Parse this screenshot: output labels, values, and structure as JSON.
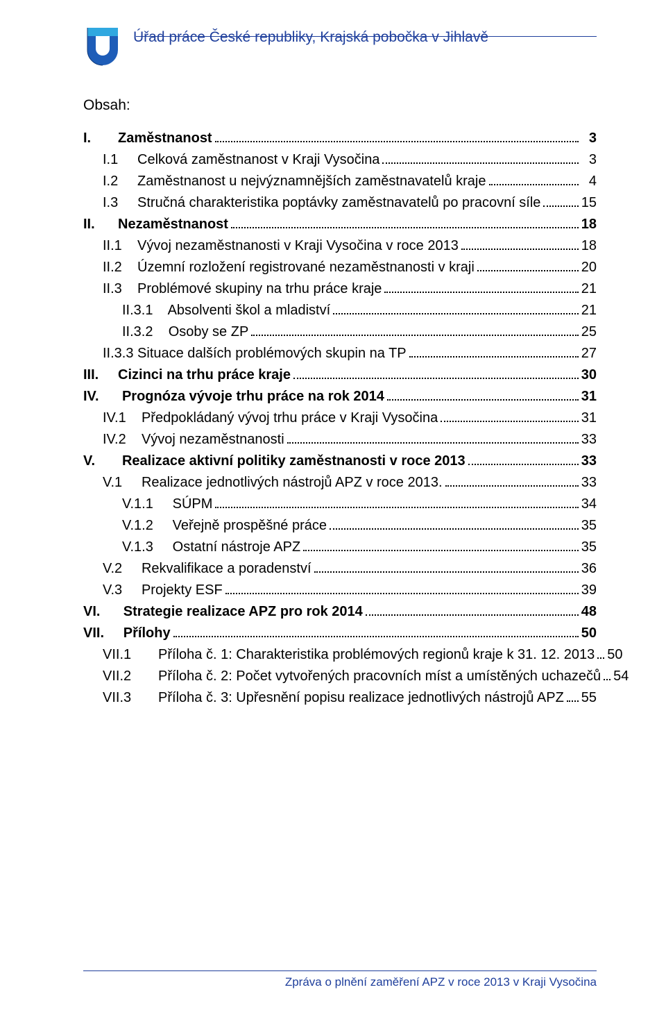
{
  "colors": {
    "brand": "#1f3f9c",
    "text": "#000000",
    "background": "#ffffff"
  },
  "typography": {
    "font_family": "Arial",
    "body_fontsize_pt": 15,
    "header_fontsize_pt": 16,
    "line_height": 1.55
  },
  "header": {
    "title": "Úřad práce České republiky, Krajská pobočka v Jihlavě"
  },
  "obsah_label": "Obsah:",
  "footer": {
    "text": "Zpráva o plnění zaměření APZ v roce 2013 v Kraji Vysočina"
  },
  "toc": [
    {
      "indent": 0,
      "bold": true,
      "num": "I.",
      "title": "Zaměstnanost",
      "page": "3",
      "pad_num": 9
    },
    {
      "indent": 1,
      "bold": false,
      "num": "I.1",
      "title": "Celková zaměstnanost v Kraji Vysočina",
      "page": "3",
      "pad_num": 8
    },
    {
      "indent": 1,
      "bold": false,
      "num": "I.2",
      "title": "Zaměstnanost u nejvýznamnějších zaměstnavatelů kraje",
      "page": "4",
      "pad_num": 8
    },
    {
      "indent": 1,
      "bold": false,
      "num": "I.3",
      "title": "Stručná charakteristika poptávky zaměstnavatelů po pracovní síle",
      "page": "15",
      "pad_num": 8
    },
    {
      "indent": 0,
      "bold": true,
      "num": "II.",
      "title": "Nezaměstnanost",
      "page": "18",
      "pad_num": 9
    },
    {
      "indent": 1,
      "bold": false,
      "num": "II.1",
      "title": "Vývoj nezaměstnanosti v Kraji Vysočina v roce 2013",
      "page": "18",
      "pad_num": 8
    },
    {
      "indent": 1,
      "bold": false,
      "num": "II.2",
      "title": "Územní rozložení registrované nezaměstnanosti v kraji",
      "page": "20",
      "pad_num": 8
    },
    {
      "indent": 1,
      "bold": false,
      "num": "II.3",
      "title": "Problémové skupiny na trhu práce kraje",
      "page": "21",
      "pad_num": 8
    },
    {
      "indent": 2,
      "bold": false,
      "num": "II.3.1",
      "title": "Absolventi škol a mladiství",
      "page": "21",
      "pad_num": 10
    },
    {
      "indent": 2,
      "bold": false,
      "num": "II.3.2",
      "title": "Osoby se ZP",
      "page": "25",
      "pad_num": 10
    },
    {
      "indent": 1,
      "bold": false,
      "num": "II.3.3",
      "title": "Situace dalších problémových skupin na TP",
      "page": "27",
      "pad_num": 0,
      "nospace": true
    },
    {
      "indent": 0,
      "bold": true,
      "num": "III.",
      "title": "Cizinci na trhu práce kraje",
      "page": "30",
      "pad_num": 9
    },
    {
      "indent": 0,
      "bold": true,
      "num": "IV.",
      "title": "Prognóza vývoje trhu práce na rok 2014",
      "page": "31",
      "pad_num": 9
    },
    {
      "indent": 1,
      "bold": false,
      "num": "IV.1",
      "title": "Předpokládaný vývoj trhu práce v Kraji Vysočina",
      "page": "31",
      "pad_num": 8
    },
    {
      "indent": 1,
      "bold": false,
      "num": "IV.2",
      "title": "Vývoj nezaměstnanosti",
      "page": "33",
      "pad_num": 8
    },
    {
      "indent": 0,
      "bold": true,
      "num": "V.",
      "title": "Realizace aktivní politiky zaměstnanosti v roce 2013",
      "page": "33",
      "pad_num": 9
    },
    {
      "indent": 1,
      "bold": false,
      "num": "V.1",
      "title": "Realizace jednotlivých nástrojů APZ v roce 2013.",
      "page": "33",
      "pad_num": 8
    },
    {
      "indent": 2,
      "bold": false,
      "num": "V.1.1",
      "title": "SÚPM",
      "page": "34",
      "pad_num": 10
    },
    {
      "indent": 2,
      "bold": false,
      "num": "V.1.2",
      "title": "Veřejně prospěšné práce",
      "page": "35",
      "pad_num": 10
    },
    {
      "indent": 2,
      "bold": false,
      "num": "V.1.3",
      "title": "Ostatní nástroje APZ",
      "page": "35",
      "pad_num": 10
    },
    {
      "indent": 1,
      "bold": false,
      "num": "V.2",
      "title": "Rekvalifikace a poradenství",
      "page": "36",
      "pad_num": 8
    },
    {
      "indent": 1,
      "bold": false,
      "num": "V.3",
      "title": "Projekty ESF",
      "page": "39",
      "pad_num": 8
    },
    {
      "indent": 0,
      "bold": true,
      "num": "VI.",
      "title": "Strategie realizace APZ pro rok 2014",
      "page": "48",
      "pad_num": 9
    },
    {
      "indent": 0,
      "bold": true,
      "num": "VII.",
      "title": "Přílohy",
      "page": "50",
      "pad_num": 9
    },
    {
      "indent": 1,
      "bold": false,
      "num": "VII.1",
      "title": "Příloha č. 1: Charakteristika problémových regionů kraje k 31. 12. 2013",
      "page": "50",
      "pad_num": 12
    },
    {
      "indent": 1,
      "bold": false,
      "num": "VII.2",
      "title": "Příloha č. 2: Počet vytvořených pracovních míst a umístěných uchazečů",
      "page": "54",
      "pad_num": 12
    },
    {
      "indent": 1,
      "bold": false,
      "num": "VII.3",
      "title": "Příloha č. 3: Upřesnění popisu realizace jednotlivých nástrojů APZ",
      "page": "55",
      "pad_num": 12
    }
  ]
}
